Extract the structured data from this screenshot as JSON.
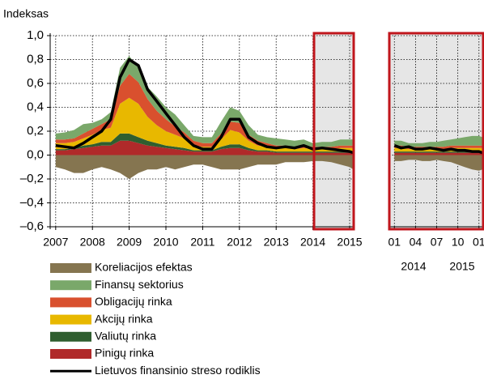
{
  "chart_data": [
    {
      "type": "area",
      "ylabel": "Indeksas",
      "x": [
        2007,
        2007.25,
        2007.5,
        2007.75,
        2008,
        2008.25,
        2008.5,
        2008.75,
        2009,
        2009.25,
        2009.5,
        2009.75,
        2010,
        2010.25,
        2010.5,
        2010.75,
        2011,
        2011.25,
        2011.5,
        2011.75,
        2012,
        2012.25,
        2012.5,
        2012.75,
        2013,
        2013.25,
        2013.5,
        2013.75,
        2014,
        2014.25,
        2014.5,
        2014.75,
        2015,
        2015.1
      ],
      "series": [
        {
          "name": "Koreliacijos efektas",
          "color": "#857550",
          "values": [
            -0.1,
            -0.12,
            -0.15,
            -0.15,
            -0.12,
            -0.1,
            -0.12,
            -0.15,
            -0.2,
            -0.15,
            -0.12,
            -0.12,
            -0.1,
            -0.12,
            -0.1,
            -0.08,
            -0.08,
            -0.1,
            -0.12,
            -0.12,
            -0.12,
            -0.1,
            -0.08,
            -0.08,
            -0.08,
            -0.06,
            -0.06,
            -0.06,
            -0.05,
            -0.05,
            -0.06,
            -0.08,
            -0.1,
            -0.12
          ]
        },
        {
          "name": "Finansų sektorius",
          "color": "#7aa86a",
          "values": [
            0.05,
            0.06,
            0.07,
            0.08,
            0.05,
            0.04,
            0.06,
            0.15,
            0.15,
            0.12,
            0.1,
            0.12,
            0.1,
            0.1,
            0.06,
            0.04,
            0.05,
            0.05,
            0.1,
            0.12,
            0.1,
            0.08,
            0.05,
            0.05,
            0.06,
            0.05,
            0.05,
            0.05,
            0.03,
            0.04,
            0.04,
            0.05,
            0.05,
            0.05
          ]
        },
        {
          "name": "Obligacijų rinka",
          "color": "#d9502e",
          "values": [
            0.03,
            0.03,
            0.03,
            0.04,
            0.05,
            0.05,
            0.07,
            0.15,
            0.2,
            0.18,
            0.15,
            0.12,
            0.1,
            0.07,
            0.05,
            0.04,
            0.03,
            0.03,
            0.05,
            0.07,
            0.08,
            0.05,
            0.04,
            0.03,
            0.02,
            0.02,
            0.02,
            0.02,
            0.02,
            0.02,
            0.02,
            0.02,
            0.02,
            0.02
          ]
        },
        {
          "name": "Akcijų rinka",
          "color": "#e8b800",
          "values": [
            0.05,
            0.05,
            0.05,
            0.06,
            0.08,
            0.1,
            0.12,
            0.25,
            0.3,
            0.28,
            0.2,
            0.15,
            0.12,
            0.1,
            0.08,
            0.04,
            0.03,
            0.03,
            0.06,
            0.12,
            0.1,
            0.06,
            0.04,
            0.03,
            0.03,
            0.03,
            0.02,
            0.03,
            0.02,
            0.02,
            0.02,
            0.03,
            0.03,
            0.03
          ]
        },
        {
          "name": "Valiutų rinka",
          "color": "#2f5e2f",
          "values": [
            0.01,
            0.01,
            0.01,
            0.02,
            0.02,
            0.03,
            0.03,
            0.06,
            0.06,
            0.05,
            0.04,
            0.03,
            0.02,
            0.02,
            0.02,
            0.01,
            0.01,
            0.01,
            0.02,
            0.03,
            0.03,
            0.02,
            0.01,
            0.01,
            0.01,
            0.01,
            0.01,
            0.01,
            0.01,
            0.01,
            0.01,
            0.01,
            0.01,
            0.01
          ]
        },
        {
          "name": "Pinigų rinka",
          "color": "#b02a2a",
          "values": [
            0.04,
            0.04,
            0.05,
            0.06,
            0.07,
            0.08,
            0.08,
            0.12,
            0.12,
            0.1,
            0.08,
            0.07,
            0.06,
            0.05,
            0.04,
            0.03,
            0.03,
            0.03,
            0.05,
            0.06,
            0.06,
            0.04,
            0.03,
            0.03,
            0.02,
            0.02,
            0.02,
            0.02,
            0.02,
            0.02,
            0.02,
            0.02,
            0.02,
            0.02
          ]
        },
        {
          "name": "Lietuvos finansinio streso rodiklis",
          "color": "#000000",
          "type": "line",
          "values": [
            0.08,
            0.07,
            0.06,
            0.1,
            0.15,
            0.2,
            0.3,
            0.65,
            0.8,
            0.75,
            0.55,
            0.45,
            0.35,
            0.25,
            0.15,
            0.08,
            0.05,
            0.05,
            0.15,
            0.3,
            0.3,
            0.15,
            0.1,
            0.07,
            0.06,
            0.07,
            0.06,
            0.08,
            0.05,
            0.06,
            0.05,
            0.04,
            0.03,
            0.02
          ]
        }
      ],
      "xlim": [
        2006.85,
        2015.11
      ],
      "xticks": [
        2007,
        2008,
        2009,
        2010,
        2011,
        2012,
        2013,
        2014,
        2015
      ],
      "ylim": [
        -0.6,
        1.0
      ],
      "yticks": [
        {
          "value": -0.6,
          "label": "–0,6"
        },
        {
          "value": -0.4,
          "label": "–0,4"
        },
        {
          "value": -0.2,
          "label": "–0,2"
        },
        {
          "value": 0,
          "label": "0,0"
        },
        {
          "value": 0.2,
          "label": "0,2"
        },
        {
          "value": 0.4,
          "label": "0,4"
        },
        {
          "value": 0.6,
          "label": "0,6"
        },
        {
          "value": 0.8,
          "label": "0,8"
        },
        {
          "value": 1.0,
          "label": "1,0"
        }
      ],
      "grid": true
    },
    {
      "type": "area",
      "x": [
        2014,
        2014.08,
        2014.17,
        2014.25,
        2014.33,
        2014.42,
        2014.5,
        2014.58,
        2014.67,
        2014.75,
        2014.83,
        2014.92,
        2015,
        2015.04
      ],
      "series": [
        {
          "color": "#857550",
          "values": [
            -0.05,
            -0.05,
            -0.04,
            -0.04,
            -0.05,
            -0.05,
            -0.04,
            -0.05,
            -0.06,
            -0.08,
            -0.1,
            -0.12,
            -0.13,
            -0.12
          ]
        },
        {
          "color": "#7aa86a",
          "values": [
            0.04,
            0.04,
            0.03,
            0.03,
            0.03,
            0.04,
            0.04,
            0.05,
            0.05,
            0.06,
            0.07,
            0.08,
            0.08,
            0.07
          ]
        },
        {
          "color": "#d9502e",
          "values": [
            0.02,
            0.02,
            0.02,
            0.02,
            0.02,
            0.02,
            0.02,
            0.02,
            0.02,
            0.02,
            0.02,
            0.02,
            0.02,
            0.02
          ]
        },
        {
          "color": "#e8b800",
          "values": [
            0.03,
            0.03,
            0.02,
            0.02,
            0.02,
            0.02,
            0.02,
            0.02,
            0.03,
            0.03,
            0.03,
            0.03,
            0.03,
            0.03
          ]
        },
        {
          "color": "#2f5e2f",
          "values": [
            0.01,
            0.01,
            0.01,
            0.01,
            0.01,
            0.01,
            0.01,
            0.01,
            0.01,
            0.01,
            0.01,
            0.01,
            0.01,
            0.01
          ]
        },
        {
          "color": "#b02a2a",
          "values": [
            0.02,
            0.02,
            0.02,
            0.02,
            0.02,
            0.02,
            0.02,
            0.02,
            0.02,
            0.02,
            0.02,
            0.02,
            0.02,
            0.02
          ]
        },
        {
          "color": "#000000",
          "type": "line",
          "values": [
            0.08,
            0.06,
            0.07,
            0.05,
            0.05,
            0.06,
            0.05,
            0.04,
            0.05,
            0.04,
            0.04,
            0.03,
            0.03,
            0.02
          ]
        }
      ],
      "xlim": [
        2013.94,
        2015.05
      ],
      "xticks": [
        {
          "value": 2014,
          "label": "01"
        },
        {
          "value": 2014.25,
          "label": "04"
        },
        {
          "value": 2014.5,
          "label": "07"
        },
        {
          "value": 2014.75,
          "label": "10"
        },
        {
          "value": 2015,
          "label": "01"
        }
      ],
      "xgroup_labels": [
        "2014",
        "2015"
      ],
      "ylim": [
        -0.6,
        1.0
      ],
      "yticks": [
        -0.6,
        -0.4,
        -0.2,
        0,
        0.2,
        0.4,
        0.6,
        0.8,
        1.0
      ],
      "grid": true
    }
  ]
}
